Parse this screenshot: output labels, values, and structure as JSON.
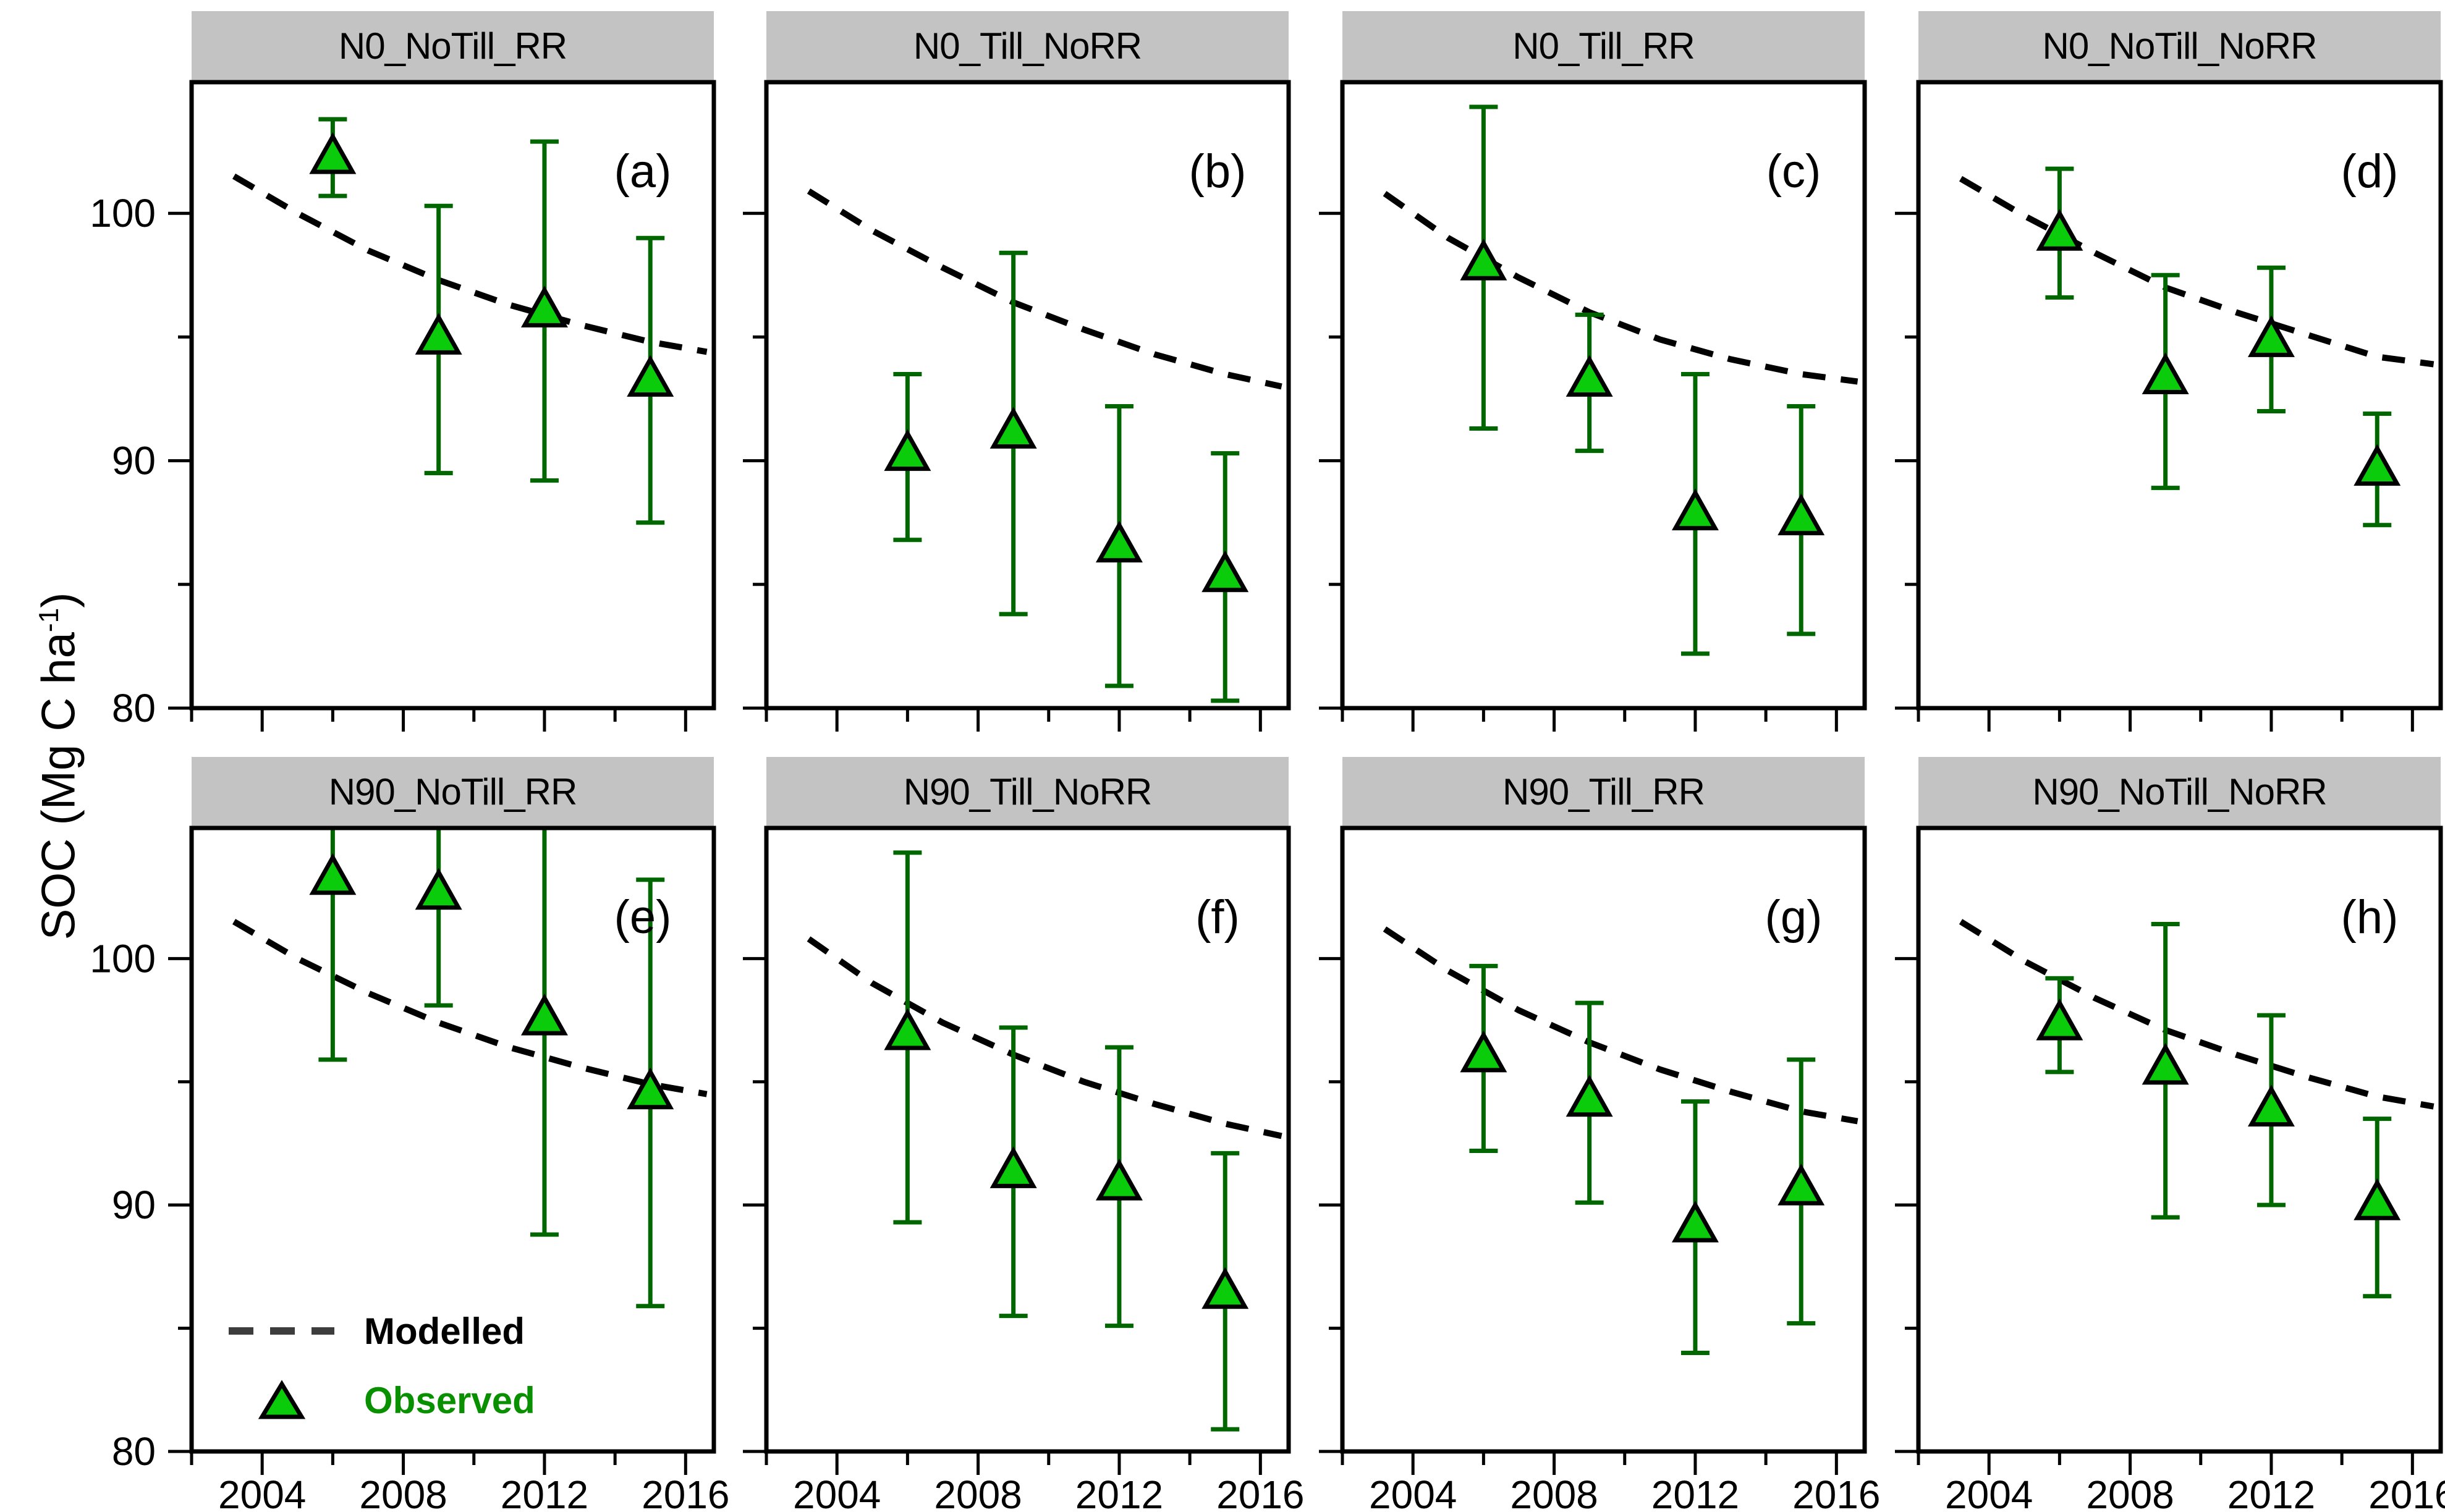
{
  "figure": {
    "y_axis": {
      "label_prefix": "SOC (Mg C ha",
      "label_sup": "-1",
      "label_suffix": ")",
      "tick_labels": [
        "100",
        "90",
        "80"
      ],
      "tick_values": [
        100,
        90,
        80
      ],
      "minor_ticks": [
        85,
        95
      ],
      "range": [
        80,
        105.3
      ]
    },
    "x_axis": {
      "tick_labels": [
        "2004",
        "2008",
        "2012",
        "2016"
      ],
      "tick_values": [
        2004,
        2008,
        2012,
        2016
      ],
      "minor_ticks": [
        2002,
        2006,
        2010,
        2014
      ],
      "range": [
        2002,
        2016.8
      ]
    },
    "legend": {
      "modelled_label": "Modelled",
      "observed_label": "Observed",
      "position": "bottom-left of panel (e)"
    },
    "colors": {
      "observed_fill": "#0acc0a",
      "observed_stroke": "#000000",
      "error_bar": "#006600",
      "modelled_line": "#000000",
      "legend_dash": "#3d3d3d",
      "legend_observed_text": "#089000",
      "header_bg": "#c3c3c3",
      "axis": "#000000"
    },
    "grid": "off",
    "layout": "2 rows x 4 columns of panels, shared axes"
  },
  "chart_data": [
    {
      "type": "line",
      "title": "N0_NoTill_RR",
      "letter": "(a)",
      "series": [
        {
          "name": "Modelled",
          "style": "dashed-line",
          "x": [
            2003.2,
            2005,
            2007,
            2009,
            2011,
            2013,
            2015,
            2016.6
          ],
          "y": [
            101.5,
            100.0,
            98.5,
            97.3,
            96.3,
            95.5,
            94.8,
            94.4
          ]
        },
        {
          "name": "Observed",
          "style": "triangle-errorbar",
          "x": [
            2006,
            2009,
            2012,
            2015
          ],
          "y": [
            102.3,
            95.0,
            96.1,
            93.3
          ],
          "err_lo": [
            100.7,
            89.5,
            89.2,
            87.5
          ],
          "err_hi": [
            103.8,
            100.3,
            102.9,
            99.0
          ],
          "top_clipped": [
            false,
            false,
            false,
            false
          ]
        }
      ]
    },
    {
      "type": "line",
      "title": "N0_Till_NoRR",
      "letter": "(b)",
      "series": [
        {
          "name": "Modelled",
          "style": "dashed-line",
          "x": [
            2003.2,
            2005,
            2007,
            2009,
            2011,
            2013,
            2015,
            2016.6
          ],
          "y": [
            100.9,
            99.3,
            97.8,
            96.4,
            95.3,
            94.3,
            93.5,
            93.0
          ]
        },
        {
          "name": "Observed",
          "style": "triangle-errorbar",
          "x": [
            2006,
            2009,
            2012,
            2015
          ],
          "y": [
            90.3,
            91.2,
            86.6,
            85.4
          ],
          "err_lo": [
            86.8,
            83.8,
            80.9,
            80.3
          ],
          "err_hi": [
            93.5,
            98.4,
            92.2,
            90.3
          ],
          "top_clipped": [
            false,
            false,
            false,
            false
          ]
        }
      ]
    },
    {
      "type": "line",
      "title": "N0_Till_RR",
      "letter": "(c)",
      "series": [
        {
          "name": "Modelled",
          "style": "dashed-line",
          "x": [
            2003.2,
            2005,
            2007,
            2009,
            2011,
            2013,
            2015,
            2016.6
          ],
          "y": [
            100.8,
            99.0,
            97.4,
            96.0,
            94.9,
            94.1,
            93.5,
            93.2
          ]
        },
        {
          "name": "Observed",
          "style": "triangle-errorbar",
          "x": [
            2006,
            2009,
            2012,
            2015
          ],
          "y": [
            98.0,
            93.3,
            87.9,
            87.7
          ],
          "err_lo": [
            91.3,
            90.4,
            82.2,
            83.0
          ],
          "err_hi": [
            104.3,
            95.9,
            93.5,
            92.2
          ],
          "top_clipped": [
            false,
            false,
            false,
            false
          ]
        }
      ]
    },
    {
      "type": "line",
      "title": "N0_NoTill_NoRR",
      "letter": "(d)",
      "series": [
        {
          "name": "Modelled",
          "style": "dashed-line",
          "x": [
            2003.2,
            2005,
            2007,
            2009,
            2011,
            2013,
            2015,
            2016.6
          ],
          "y": [
            101.4,
            99.9,
            98.4,
            97.0,
            96.0,
            95.1,
            94.2,
            93.9
          ]
        },
        {
          "name": "Observed",
          "style": "triangle-errorbar",
          "x": [
            2006,
            2009,
            2012,
            2015
          ],
          "y": [
            99.2,
            93.4,
            94.9,
            89.7
          ],
          "err_lo": [
            96.6,
            88.9,
            92.0,
            87.4
          ],
          "err_hi": [
            101.8,
            97.5,
            97.8,
            91.9
          ],
          "top_clipped": [
            false,
            false,
            false,
            false
          ]
        }
      ]
    },
    {
      "type": "line",
      "title": "N90_NoTill_RR",
      "letter": "(e)",
      "series": [
        {
          "name": "Modelled",
          "style": "dashed-line",
          "x": [
            2003.2,
            2005,
            2007,
            2009,
            2011,
            2013,
            2015,
            2016.6
          ],
          "y": [
            101.5,
            100.0,
            98.6,
            97.4,
            96.4,
            95.6,
            94.9,
            94.5
          ]
        },
        {
          "name": "Observed",
          "style": "triangle-errorbar",
          "x": [
            2006,
            2009,
            2012,
            2015
          ],
          "y": [
            103.3,
            102.7,
            97.6,
            94.6
          ],
          "err_lo": [
            95.9,
            98.1,
            88.8,
            85.9
          ],
          "err_hi": [
            106.5,
            106.5,
            106.5,
            103.2
          ],
          "top_clipped": [
            true,
            true,
            true,
            false
          ]
        }
      ]
    },
    {
      "type": "line",
      "title": "N90_Till_NoRR",
      "letter": "(f)",
      "series": [
        {
          "name": "Modelled",
          "style": "dashed-line",
          "x": [
            2003.2,
            2005,
            2007,
            2009,
            2011,
            2013,
            2015,
            2016.6
          ],
          "y": [
            100.8,
            99.0,
            97.4,
            96.1,
            95.0,
            94.1,
            93.3,
            92.8
          ]
        },
        {
          "name": "Observed",
          "style": "triangle-errorbar",
          "x": [
            2006,
            2009,
            2012,
            2015
          ],
          "y": [
            97.0,
            91.4,
            90.9,
            86.5
          ],
          "err_lo": [
            89.3,
            85.5,
            85.1,
            80.9
          ],
          "err_hi": [
            104.3,
            97.2,
            96.4,
            92.1
          ],
          "top_clipped": [
            false,
            false,
            false,
            false
          ]
        }
      ]
    },
    {
      "type": "line",
      "title": "N90_Till_RR",
      "letter": "(g)",
      "series": [
        {
          "name": "Modelled",
          "style": "dashed-line",
          "x": [
            2003.2,
            2005,
            2007,
            2009,
            2011,
            2013,
            2015,
            2016.6
          ],
          "y": [
            101.2,
            99.5,
            97.9,
            96.6,
            95.5,
            94.6,
            93.8,
            93.4
          ]
        },
        {
          "name": "Observed",
          "style": "triangle-errorbar",
          "x": [
            2006,
            2009,
            2012,
            2015
          ],
          "y": [
            96.1,
            94.3,
            89.2,
            90.7
          ],
          "err_lo": [
            92.2,
            90.1,
            84.0,
            85.2
          ],
          "err_hi": [
            99.7,
            98.2,
            94.2,
            95.9
          ],
          "top_clipped": [
            false,
            false,
            false,
            false
          ]
        }
      ]
    },
    {
      "type": "line",
      "title": "N90_NoTill_NoRR",
      "letter": "(h)",
      "series": [
        {
          "name": "Modelled",
          "style": "dashed-line",
          "x": [
            2003.2,
            2005,
            2007,
            2009,
            2011,
            2013,
            2015,
            2016.6
          ],
          "y": [
            101.5,
            99.9,
            98.4,
            97.1,
            96.1,
            95.2,
            94.4,
            94.0
          ]
        },
        {
          "name": "Observed",
          "style": "triangle-errorbar",
          "x": [
            2006,
            2009,
            2012,
            2015
          ],
          "y": [
            97.4,
            95.6,
            93.9,
            90.1
          ],
          "err_lo": [
            95.4,
            89.5,
            90.0,
            86.3
          ],
          "err_hi": [
            99.2,
            101.4,
            97.7,
            93.5
          ],
          "top_clipped": [
            false,
            false,
            false,
            false
          ]
        }
      ]
    }
  ]
}
